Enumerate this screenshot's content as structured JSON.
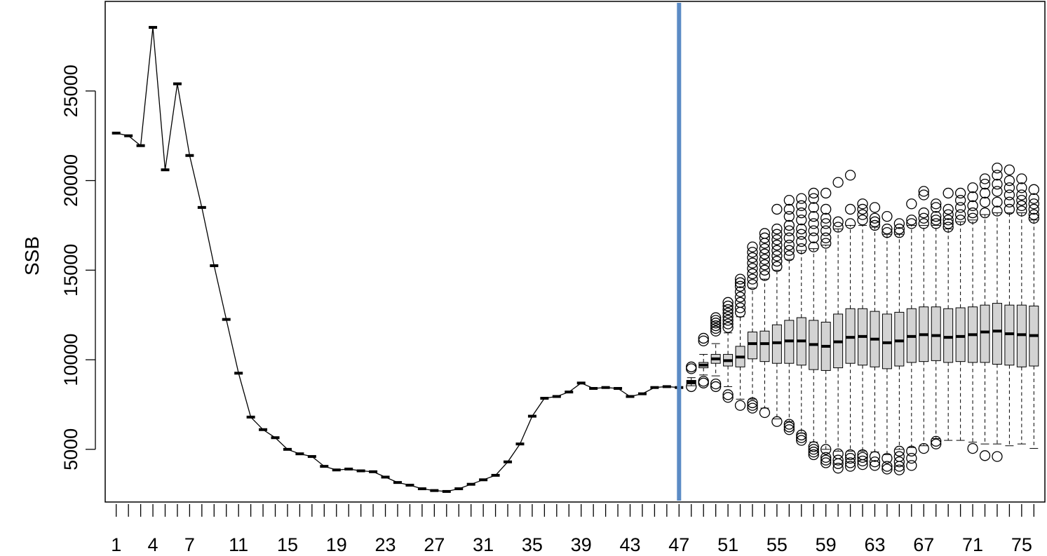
{
  "chart_data": {
    "type": "box",
    "ylabel": "SSB",
    "xlabel": "",
    "xlim": [
      0.1,
      76.9
    ],
    "ylim": [
      2060,
      30000
    ],
    "x_tick_labels": [
      "1",
      "4",
      "7",
      "11",
      "15",
      "19",
      "23",
      "27",
      "31",
      "35",
      "39",
      "43",
      "47",
      "51",
      "55",
      "59",
      "63",
      "67",
      "71",
      "75"
    ],
    "y_ticks": [
      5000,
      10000,
      15000,
      20000,
      25000
    ],
    "vertical_marker": {
      "x": 47,
      "color": "#5b8bc5"
    },
    "historical_ssb": [
      22650,
      22500,
      21950,
      28550,
      20600,
      25400,
      21400,
      18500,
      15250,
      12250,
      9250,
      6800,
      6100,
      5650,
      5000,
      4750,
      4600,
      4050,
      3850,
      3900,
      3800,
      3750,
      3450,
      3150,
      3000,
      2800,
      2700,
      2650,
      2800,
      3050,
      3300,
      3550,
      4300,
      5300,
      6850,
      7850,
      7950,
      8200,
      8700,
      8400,
      8450,
      8400,
      7950,
      8100,
      8450,
      8500,
      8450
    ],
    "projection_boxes": [
      {
        "x": 48,
        "median": 8750,
        "q1": 8650,
        "q3": 8850,
        "whisker_low": 8550,
        "whisker_high": 9000,
        "outliers": [
          8500,
          9500,
          9600
        ]
      },
      {
        "x": 49,
        "median": 9700,
        "q1": 9550,
        "q3": 9850,
        "whisker_low": 9150,
        "whisker_high": 10300,
        "outliers": [
          8700,
          8800,
          11050,
          11200
        ]
      },
      {
        "x": 50,
        "median": 10050,
        "q1": 9800,
        "q3": 10300,
        "whisker_low": 9100,
        "whisker_high": 10900,
        "outliers": [
          8500,
          8650,
          11600,
          11750,
          11900,
          12050,
          12200,
          12350
        ]
      },
      {
        "x": 51,
        "median": 9950,
        "q1": 9650,
        "q3": 10300,
        "whisker_low": 8500,
        "whisker_high": 11500,
        "outliers": [
          7900,
          8050,
          11800,
          12000,
          12200,
          12400,
          12600,
          12800,
          13000,
          13200
        ]
      },
      {
        "x": 52,
        "median": 10150,
        "q1": 9600,
        "q3": 10750,
        "whisker_low": 7800,
        "whisker_high": 12400,
        "outliers": [
          7450,
          12650,
          12900,
          13200,
          13500,
          13800,
          14100,
          14300,
          14500
        ]
      },
      {
        "x": 53,
        "median": 10900,
        "q1": 10050,
        "q3": 11550,
        "whisker_low": 7800,
        "whisker_high": 14000,
        "outliers": [
          7300,
          7450,
          7600,
          14200,
          14500,
          14800,
          15100,
          15400,
          15700,
          16000,
          16300
        ]
      },
      {
        "x": 54,
        "median": 10900,
        "q1": 9900,
        "q3": 11600,
        "whisker_low": 7300,
        "whisker_high": 14500,
        "outliers": [
          7050,
          14700,
          15000,
          15300,
          15600,
          15900,
          16200,
          16500,
          16800,
          17050
        ]
      },
      {
        "x": 55,
        "median": 10950,
        "q1": 9800,
        "q3": 11950,
        "whisker_low": 6700,
        "whisker_high": 15000,
        "outliers": [
          6550,
          15200,
          15500,
          15800,
          16100,
          16400,
          16700,
          17000,
          17300,
          18400
        ]
      },
      {
        "x": 56,
        "median": 11050,
        "q1": 9800,
        "q3": 12200,
        "whisker_low": 6550,
        "whisker_high": 15600,
        "outliers": [
          6100,
          6250,
          6400,
          15800,
          16100,
          16400,
          16800,
          17200,
          17500,
          18000,
          18400,
          18900
        ]
      },
      {
        "x": 57,
        "median": 11050,
        "q1": 9700,
        "q3": 12350,
        "whisker_low": 5900,
        "whisker_high": 16100,
        "outliers": [
          5500,
          5650,
          5800,
          16200,
          16600,
          17000,
          17300,
          17800,
          18200,
          18600,
          19000
        ]
      },
      {
        "x": 58,
        "median": 10850,
        "q1": 9450,
        "q3": 12200,
        "whisker_low": 5400,
        "whisker_high": 16200,
        "outliers": [
          4700,
          4850,
          5000,
          5150,
          16300,
          16800,
          17200,
          17600,
          18000,
          18500,
          19000,
          19300
        ]
      },
      {
        "x": 59,
        "median": 10750,
        "q1": 9400,
        "q3": 12100,
        "whisker_low": 5000,
        "whisker_high": 16400,
        "outliers": [
          4250,
          4400,
          4550,
          5000,
          16500,
          16800,
          17200,
          17600,
          17900,
          18400,
          19300
        ]
      },
      {
        "x": 60,
        "median": 11000,
        "q1": 9550,
        "q3": 12550,
        "whisker_low": 4900,
        "whisker_high": 17300,
        "outliers": [
          3950,
          4200,
          4400,
          4750,
          17400,
          17700,
          19900
        ]
      },
      {
        "x": 61,
        "median": 11250,
        "q1": 9800,
        "q3": 12850,
        "whisker_low": 4900,
        "whisker_high": 17500,
        "outliers": [
          4050,
          4250,
          4500,
          4700,
          17600,
          18400,
          20300
        ]
      },
      {
        "x": 62,
        "median": 11300,
        "q1": 9700,
        "q3": 12850,
        "whisker_low": 4900,
        "whisker_high": 17500,
        "outliers": [
          4150,
          4350,
          4550,
          4700,
          17800,
          18100,
          18400,
          18700
        ]
      },
      {
        "x": 63,
        "median": 11150,
        "q1": 9600,
        "q3": 12700,
        "whisker_low": 4850,
        "whisker_high": 17400,
        "outliers": [
          4100,
          4300,
          4600,
          17500,
          17700,
          17900,
          18500
        ]
      },
      {
        "x": 64,
        "median": 10950,
        "q1": 9500,
        "q3": 12550,
        "whisker_low": 4700,
        "whisker_high": 17000,
        "outliers": [
          3900,
          4050,
          4500,
          17100,
          17300,
          18000
        ]
      },
      {
        "x": 65,
        "median": 11050,
        "q1": 9650,
        "q3": 12650,
        "whisker_low": 5000,
        "whisker_high": 17000,
        "outliers": [
          3850,
          4050,
          4300,
          4600,
          4900,
          17100,
          17300,
          17600
        ]
      },
      {
        "x": 66,
        "median": 11300,
        "q1": 9850,
        "q3": 12850,
        "whisker_low": 5100,
        "whisker_high": 17500,
        "outliers": [
          4100,
          4500,
          4900,
          17600,
          17800,
          18700
        ]
      },
      {
        "x": 67,
        "median": 11400,
        "q1": 9900,
        "q3": 12950,
        "whisker_low": 5200,
        "whisker_high": 17500,
        "outliers": [
          5050,
          17600,
          17900,
          18200,
          19200,
          19400
        ]
      },
      {
        "x": 68,
        "median": 11350,
        "q1": 9950,
        "q3": 12950,
        "whisker_low": 5600,
        "whisker_high": 17500,
        "outliers": [
          5300,
          5450,
          17600,
          17800,
          18000,
          18500,
          18700
        ]
      },
      {
        "x": 69,
        "median": 11250,
        "q1": 9850,
        "q3": 12850,
        "whisker_low": 5500,
        "whisker_high": 17300,
        "outliers": [
          17400,
          17600,
          17800,
          18100,
          18400,
          19300
        ]
      },
      {
        "x": 70,
        "median": 11300,
        "q1": 9900,
        "q3": 12900,
        "whisker_low": 5500,
        "whisker_high": 17700,
        "outliers": [
          17800,
          18100,
          18500,
          18900,
          19300
        ]
      },
      {
        "x": 71,
        "median": 11400,
        "q1": 9850,
        "q3": 12950,
        "whisker_low": 5400,
        "whisker_high": 17800,
        "outliers": [
          5050,
          17900,
          18200,
          18600,
          19100,
          19600
        ]
      },
      {
        "x": 72,
        "median": 11550,
        "q1": 9850,
        "q3": 13050,
        "whisker_low": 5300,
        "whisker_high": 18100,
        "outliers": [
          4650,
          18200,
          18800,
          19300,
          19800,
          20100
        ]
      },
      {
        "x": 73,
        "median": 11600,
        "q1": 9750,
        "q3": 13150,
        "whisker_low": 5300,
        "whisker_high": 18200,
        "outliers": [
          4600,
          18300,
          18800,
          19400,
          19800,
          20300,
          20700
        ]
      },
      {
        "x": 74,
        "median": 11450,
        "q1": 9700,
        "q3": 13050,
        "whisker_low": 5200,
        "whisker_high": 18200,
        "outliers": [
          18400,
          18800,
          19200,
          19600,
          20000,
          20600
        ]
      },
      {
        "x": 75,
        "median": 11400,
        "q1": 9600,
        "q3": 13050,
        "whisker_low": 5300,
        "whisker_high": 18200,
        "outliers": [
          18300,
          18600,
          18900,
          19200,
          19600,
          20100
        ]
      },
      {
        "x": 76,
        "median": 11350,
        "q1": 9650,
        "q3": 13000,
        "whisker_low": 5050,
        "whisker_high": 17800,
        "outliers": [
          17900,
          18100,
          18400,
          18700,
          19000,
          19500
        ]
      }
    ],
    "grid": false,
    "colors": {
      "box_fill": "#d3d3d3",
      "line": "#000000",
      "marker": "#5b8bc5"
    }
  }
}
